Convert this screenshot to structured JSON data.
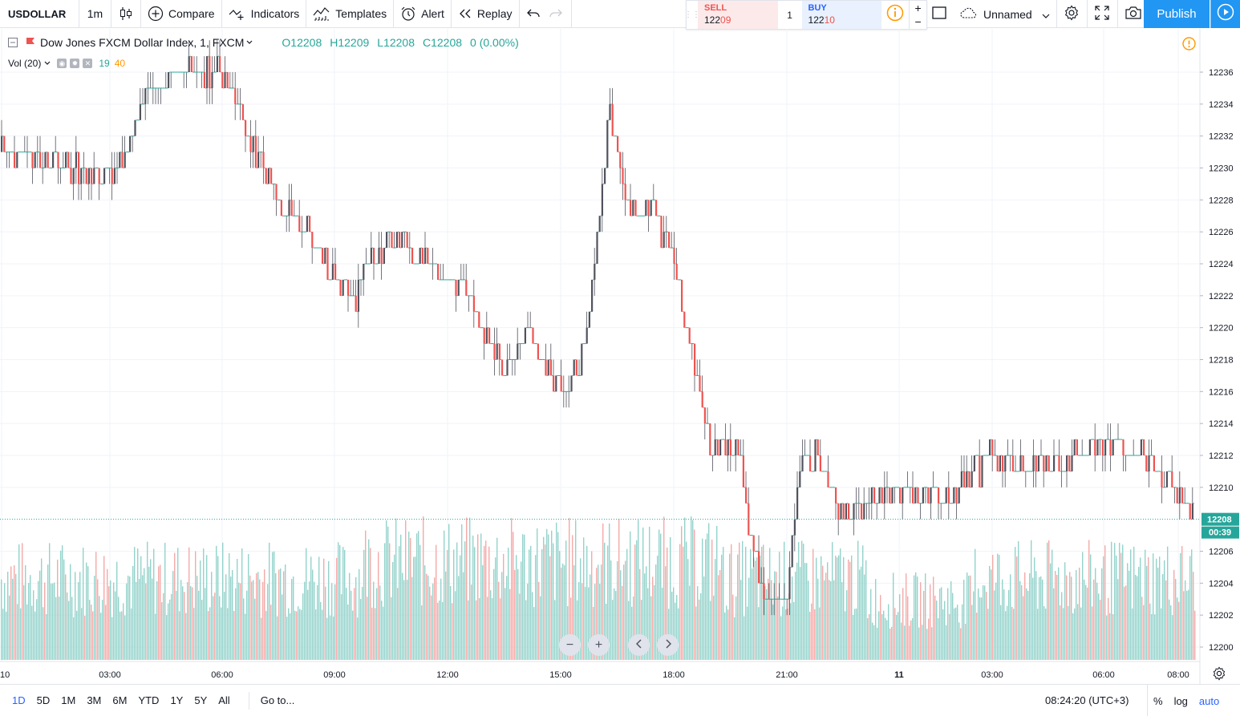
{
  "toolbar": {
    "symbol": "USDOLLAR",
    "interval": "1m",
    "compare": "Compare",
    "indicators": "Indicators",
    "templates": "Templates",
    "alert": "Alert",
    "replay": "Replay",
    "layout_name": "Unnamed",
    "publish": "Publish"
  },
  "trade": {
    "sell_label": "SELL",
    "sell_price": "12209",
    "quantity": "1",
    "buy_label": "BUY",
    "buy_price": "12210",
    "plus": "+",
    "minus": "−"
  },
  "legend": {
    "title": "Dow Jones FXCM Dollar Index, 1, FXCM",
    "open": "O12208",
    "high": "H12209",
    "low": "L12208",
    "close": "C12208",
    "change": "0 (0.00%)"
  },
  "volume_legend": {
    "label": "Vol (20)",
    "value": "19",
    "ma": "40"
  },
  "price_axis": {
    "ticks": [
      "12236",
      "12234",
      "12232",
      "12230",
      "12228",
      "12226",
      "12224",
      "12222",
      "12220",
      "12218",
      "12216",
      "12214",
      "12212",
      "12210",
      "12206",
      "12204",
      "12202",
      "12200"
    ],
    "last_price": "12208",
    "countdown": "00:39"
  },
  "time_axis": {
    "ticks": [
      "10",
      "03:00",
      "06:00",
      "09:00",
      "12:00",
      "15:00",
      "18:00",
      "21:00",
      "11",
      "03:00",
      "06:00",
      "08:00"
    ]
  },
  "chart_data": {
    "type": "candlestick",
    "title": "Dow Jones FXCM Dollar Index, 1, FXCM",
    "interval": "1m",
    "ylim": [
      12199,
      12237
    ],
    "last_close": 12208,
    "price_path": [
      {
        "time": "00:00",
        "price": 12231
      },
      {
        "time": "02:00",
        "price": 12230
      },
      {
        "time": "03:00",
        "price": 12229
      },
      {
        "time": "04:00",
        "price": 12235
      },
      {
        "time": "05:00",
        "price": 12236
      },
      {
        "time": "06:00",
        "price": 12236
      },
      {
        "time": "06:40",
        "price": 12232
      },
      {
        "time": "07:30",
        "price": 12228
      },
      {
        "time": "08:30",
        "price": 12225
      },
      {
        "time": "09:30",
        "price": 12222
      },
      {
        "time": "10:30",
        "price": 12226
      },
      {
        "time": "11:30",
        "price": 12224
      },
      {
        "time": "12:30",
        "price": 12222
      },
      {
        "time": "13:30",
        "price": 12217
      },
      {
        "time": "14:00",
        "price": 12220
      },
      {
        "time": "15:00",
        "price": 12216
      },
      {
        "time": "15:30",
        "price": 12218
      },
      {
        "time": "16:00",
        "price": 12226
      },
      {
        "time": "16:15",
        "price": 12234
      },
      {
        "time": "16:45",
        "price": 12228
      },
      {
        "time": "17:30",
        "price": 12227
      },
      {
        "time": "18:00",
        "price": 12224
      },
      {
        "time": "18:30",
        "price": 12218
      },
      {
        "time": "19:00",
        "price": 12212
      },
      {
        "time": "19:45",
        "price": 12213
      },
      {
        "time": "20:00",
        "price": 12206
      },
      {
        "time": "20:30",
        "price": 12203
      },
      {
        "time": "21:00",
        "price": 12203
      },
      {
        "time": "21:15",
        "price": 12211
      },
      {
        "time": "21:45",
        "price": 12212
      },
      {
        "time": "22:30",
        "price": 12208
      },
      {
        "time": "23:00",
        "price": 12209
      },
      {
        "time": "00:00",
        "price": 12210
      },
      {
        "time": "01:30",
        "price": 12209
      },
      {
        "time": "03:00",
        "price": 12212
      },
      {
        "time": "04:00",
        "price": 12211
      },
      {
        "time": "05:00",
        "price": 12212
      },
      {
        "time": "06:00",
        "price": 12213
      },
      {
        "time": "07:00",
        "price": 12212
      },
      {
        "time": "08:00",
        "price": 12210
      },
      {
        "time": "08:24",
        "price": 12208
      }
    ],
    "volume": {
      "ma_length": 20,
      "last": 19,
      "ma_value": 40
    }
  },
  "zoom": {
    "minus": "−",
    "plus": "+"
  },
  "bottom": {
    "ranges": [
      "1D",
      "5D",
      "1M",
      "3M",
      "6M",
      "YTD",
      "1Y",
      "5Y",
      "All"
    ],
    "active_range": "1D",
    "goto": "Go to...",
    "clock": "08:24:20 (UTC+3)",
    "percent": "%",
    "log": "log",
    "auto": "auto"
  },
  "colors": {
    "up": "#26a69a",
    "down": "#ef5350",
    "up_volume": "#93d3cb",
    "down_volume": "#f4aaa8",
    "accent": "#2196f3",
    "alert": "#ff9800"
  }
}
